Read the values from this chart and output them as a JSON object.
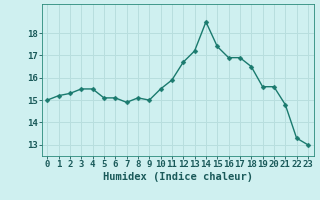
{
  "x": [
    0,
    1,
    2,
    3,
    4,
    5,
    6,
    7,
    8,
    9,
    10,
    11,
    12,
    13,
    14,
    15,
    16,
    17,
    18,
    19,
    20,
    21,
    22,
    23
  ],
  "y": [
    15.0,
    15.2,
    15.3,
    15.5,
    15.5,
    15.1,
    15.1,
    14.9,
    15.1,
    15.0,
    15.5,
    15.9,
    16.7,
    17.2,
    18.5,
    17.4,
    16.9,
    16.9,
    16.5,
    15.6,
    15.6,
    14.8,
    13.3,
    13.0
  ],
  "xlabel": "Humidex (Indice chaleur)",
  "line_color": "#1a7a6e",
  "marker_color": "#1a7a6e",
  "bg_color": "#cff0f0",
  "grid_color": "#b8dede",
  "ylim": [
    12.5,
    19.3
  ],
  "xlim": [
    -0.5,
    23.5
  ],
  "yticks": [
    13,
    14,
    15,
    16,
    17,
    18
  ],
  "xtick_labels": [
    "0",
    "1",
    "2",
    "3",
    "4",
    "5",
    "6",
    "7",
    "8",
    "9",
    "10",
    "11",
    "12",
    "13",
    "14",
    "15",
    "16",
    "17",
    "18",
    "19",
    "20",
    "21",
    "22",
    "23"
  ],
  "xlabel_fontsize": 7.5,
  "tick_fontsize": 6.5,
  "line_width": 1.0,
  "marker_size": 2.5
}
